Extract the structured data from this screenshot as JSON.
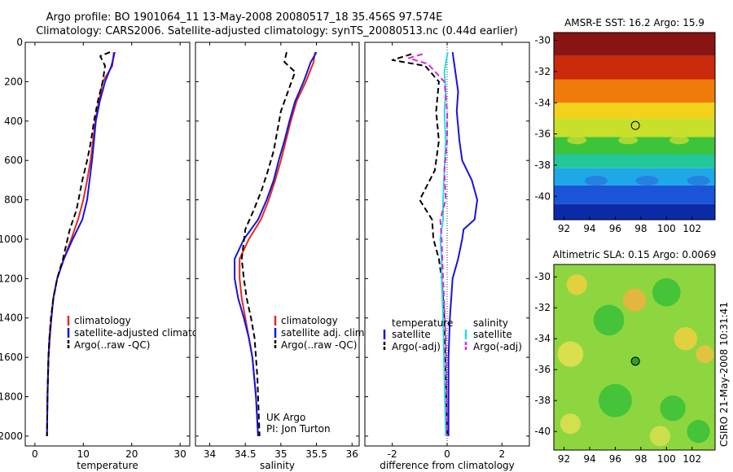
{
  "figure": {
    "title_line1": "Argo profile: BO 1901064_11 13-May-2008 20080517_18 35.456S 97.574E",
    "title_line2": "Climatology: CARS2006. Satellite-adjusted climatology: synTS_20080513.nc (0.44d earlier)",
    "side_note": "CSIRO 21-May-2008 10:31:41"
  },
  "chart_data": [
    {
      "type": "line",
      "panel": "temperature",
      "xlabel": "temperature",
      "xlim": [
        -2,
        32
      ],
      "ylim": [
        2050,
        0
      ],
      "xticks": [
        "0",
        "10",
        "20",
        "30"
      ],
      "yticks": [
        "0",
        "200",
        "400",
        "600",
        "800",
        "1000",
        "1200",
        "1400",
        "1600",
        "1800",
        "2000"
      ],
      "legend": [
        "climatology",
        "satellite-adjusted climatology",
        "Argo(..raw -QC)"
      ],
      "series": [
        {
          "name": "climatology",
          "color": "#e8281e",
          "dash": false,
          "x": [
            16.3,
            16.0,
            14.0,
            13.2,
            12.5,
            12.0,
            11.5,
            10.8,
            10.0,
            8.9,
            7.5,
            6.0,
            4.6,
            3.8,
            3.4,
            3.1,
            2.8,
            2.6,
            2.5
          ],
          "y": [
            50,
            120,
            200,
            300,
            400,
            500,
            600,
            700,
            800,
            900,
            1000,
            1100,
            1200,
            1300,
            1400,
            1500,
            1600,
            1800,
            2000
          ]
        },
        {
          "name": "satellite-adjusted climatology",
          "color": "#1414e0",
          "dash": false,
          "x": [
            16.5,
            15.8,
            14.5,
            13.4,
            12.6,
            12.2,
            11.8,
            11.3,
            10.8,
            9.8,
            7.8,
            6.0,
            4.6,
            3.8,
            3.4,
            3.0,
            2.8,
            2.6,
            2.5
          ],
          "y": [
            50,
            120,
            200,
            300,
            400,
            500,
            600,
            700,
            800,
            900,
            1000,
            1100,
            1200,
            1300,
            1400,
            1500,
            1600,
            1800,
            2000
          ]
        },
        {
          "name": "Argo(..raw -QC)",
          "color": "#000000",
          "dash": true,
          "x": [
            15.5,
            13.5,
            14.5,
            14.0,
            13.0,
            12.2,
            11.6,
            10.8,
            9.8,
            8.6,
            7.2,
            5.8,
            4.6,
            3.8,
            3.3,
            3.0,
            2.8,
            2.6,
            2.5
          ],
          "y": [
            50,
            70,
            120,
            200,
            300,
            400,
            500,
            600,
            700,
            850,
            950,
            1100,
            1200,
            1300,
            1400,
            1500,
            1600,
            1800,
            2000
          ]
        }
      ]
    },
    {
      "type": "line",
      "panel": "salinity",
      "xlabel": "salinity",
      "xlim": [
        33.8,
        36.1
      ],
      "ylim": [
        2050,
        0
      ],
      "xticks": [
        "34",
        "34.5",
        "35",
        "35.5",
        "36"
      ],
      "legend": [
        "climatology",
        "satellite adj. clim.",
        "Argo(..raw -QC)"
      ],
      "annotation_line1": "UK Argo",
      "annotation_line2": "PI: Jon Turton",
      "series": [
        {
          "name": "climatology",
          "color": "#e8281e",
          "dash": false,
          "x": [
            35.48,
            35.46,
            35.35,
            35.22,
            35.14,
            35.07,
            35.0,
            34.92,
            34.83,
            34.72,
            34.55,
            34.42,
            34.42,
            34.45,
            34.5,
            34.55,
            34.6,
            34.65,
            34.68
          ],
          "y": [
            50,
            100,
            200,
            300,
            400,
            500,
            600,
            700,
            800,
            900,
            1000,
            1100,
            1200,
            1300,
            1400,
            1500,
            1600,
            1800,
            2000
          ]
        },
        {
          "name": "satellite adj. clim.",
          "color": "#1414e0",
          "dash": false,
          "x": [
            35.5,
            35.42,
            35.32,
            35.2,
            35.12,
            35.05,
            34.97,
            34.9,
            34.8,
            34.68,
            34.48,
            34.35,
            34.35,
            34.4,
            34.48,
            34.55,
            34.6,
            34.65,
            34.68
          ],
          "y": [
            50,
            100,
            200,
            300,
            400,
            500,
            600,
            700,
            800,
            900,
            1000,
            1100,
            1200,
            1300,
            1400,
            1500,
            1600,
            1800,
            2000
          ]
        },
        {
          "name": "Argo(..raw -QC)",
          "color": "#000000",
          "dash": true,
          "x": [
            35.08,
            35.05,
            35.2,
            35.1,
            35.0,
            34.95,
            34.9,
            34.82,
            34.73,
            34.62,
            34.5,
            34.45,
            34.48,
            34.52,
            34.58,
            34.63,
            34.67,
            34.7
          ],
          "y": [
            50,
            100,
            150,
            250,
            350,
            450,
            550,
            650,
            750,
            850,
            950,
            1100,
            1200,
            1300,
            1400,
            1500,
            1700,
            2000
          ]
        }
      ]
    },
    {
      "type": "line",
      "panel": "difference",
      "xlabel": "difference from climatology",
      "xlim": [
        -3,
        3
      ],
      "ylim": [
        2050,
        0
      ],
      "xticks": [
        "-2",
        "0",
        "2"
      ],
      "legend_group1_title": "temperature",
      "legend_group2_title": "salinity",
      "legend": [
        "satellite",
        "Argo(-adj)",
        "satellite",
        "Argo(-adj)"
      ],
      "series": [
        {
          "name": "satellite",
          "color": "#1414e0",
          "dash": false,
          "x": [
            0.2,
            0.3,
            0.4,
            0.35,
            0.45,
            0.55,
            0.9,
            1.1,
            1.0,
            0.6,
            0.55,
            0.4,
            0.2,
            0.1,
            0.05,
            0.05,
            0.05
          ],
          "y": [
            50,
            150,
            250,
            350,
            500,
            600,
            700,
            800,
            900,
            950,
            1000,
            1100,
            1200,
            1400,
            1600,
            1800,
            2000
          ]
        },
        {
          "name": "Argo(-adj)",
          "color": "#000000",
          "dash": true,
          "x": [
            -1.3,
            -2.0,
            -0.8,
            -0.3,
            -0.4,
            -0.3,
            -0.45,
            -1.0,
            -0.55,
            -0.5,
            -0.3,
            -0.2,
            -0.1,
            -0.05,
            0.0
          ],
          "y": [
            60,
            90,
            120,
            200,
            350,
            500,
            650,
            800,
            900,
            1000,
            1100,
            1200,
            1400,
            1700,
            2000
          ]
        },
        {
          "name": "satellite",
          "color": "#20e0e0",
          "dash": false,
          "x": [
            0.02,
            -0.1,
            -0.05,
            -0.1,
            -0.05,
            -0.1,
            -0.15,
            -0.15,
            -0.25,
            -0.2,
            -0.2,
            -0.15,
            -0.1,
            -0.05
          ],
          "y": [
            50,
            150,
            250,
            350,
            500,
            650,
            800,
            900,
            1000,
            1100,
            1200,
            1400,
            1700,
            2000
          ]
        },
        {
          "name": "Argo(-adj)",
          "color": "#e020e0",
          "dash": true,
          "x": [
            -0.9,
            -1.4,
            -0.7,
            -0.1,
            0.0,
            0.0,
            -0.1,
            -0.05,
            -0.25,
            -0.2,
            -0.15,
            -0.05,
            0.0
          ],
          "y": [
            60,
            80,
            110,
            200,
            350,
            500,
            650,
            800,
            900,
            1000,
            1200,
            1500,
            2000
          ]
        }
      ]
    },
    {
      "type": "heatmap",
      "panel": "sst-map",
      "title": "AMSR-E SST: 16.2 Argo: 15.9",
      "xlim": [
        91.2,
        103.8
      ],
      "ylim": [
        -41.5,
        -29.5
      ],
      "xticks": [
        "92",
        "94",
        "96",
        "98",
        "100",
        "102"
      ],
      "yticks": [
        "-30",
        "-32",
        "-34",
        "-36",
        "-38",
        "-40"
      ],
      "marker": {
        "lon": 97.574,
        "lat": -35.456
      },
      "bands": [
        {
          "lat_from": -29.5,
          "lat_to": -31.0,
          "color": "#8a1414"
        },
        {
          "lat_from": -31.0,
          "lat_to": -32.5,
          "color": "#cc2a0c"
        },
        {
          "lat_from": -32.5,
          "lat_to": -34.0,
          "color": "#f07a0a"
        },
        {
          "lat_from": -34.0,
          "lat_to": -35.0,
          "color": "#f2d21a"
        },
        {
          "lat_from": -35.0,
          "lat_to": -36.2,
          "color": "#c8e02a"
        },
        {
          "lat_from": -36.2,
          "lat_to": -37.3,
          "color": "#3ec43a"
        },
        {
          "lat_from": -37.3,
          "lat_to": -38.2,
          "color": "#22c79a"
        },
        {
          "lat_from": -38.2,
          "lat_to": -39.3,
          "color": "#1ea8e8"
        },
        {
          "lat_from": -39.3,
          "lat_to": -40.5,
          "color": "#1a54d8"
        },
        {
          "lat_from": -40.5,
          "lat_to": -41.5,
          "color": "#0c2aa8"
        }
      ]
    },
    {
      "type": "heatmap",
      "panel": "sla-map",
      "title": "Altimetric SLA: 0.15 Argo: 0.0069",
      "xlim": [
        91.2,
        103.8
      ],
      "ylim": [
        -41.2,
        -29.2
      ],
      "xticks": [
        "92",
        "94",
        "96",
        "98",
        "100",
        "102"
      ],
      "yticks": [
        "-30",
        "-32",
        "-34",
        "-36",
        "-38",
        "-40"
      ],
      "marker": {
        "lon": 97.574,
        "lat": -35.456
      },
      "base_color": "#8ed640",
      "patches": [
        {
          "lon": 97.5,
          "lat": -31.5,
          "r": 0.9,
          "color": "#f2b040"
        },
        {
          "lon": 93.0,
          "lat": -30.5,
          "r": 0.8,
          "color": "#f0d040"
        },
        {
          "lon": 101.5,
          "lat": -34.0,
          "r": 0.9,
          "color": "#f0d040"
        },
        {
          "lon": 103.0,
          "lat": -35.0,
          "r": 0.7,
          "color": "#f0c040"
        },
        {
          "lon": 92.5,
          "lat": -35.0,
          "r": 1.0,
          "color": "#e8e050"
        },
        {
          "lon": 95.5,
          "lat": -32.8,
          "r": 1.2,
          "color": "#38c038"
        },
        {
          "lon": 100.0,
          "lat": -31.0,
          "r": 1.1,
          "color": "#38c038"
        },
        {
          "lon": 96.0,
          "lat": -38.0,
          "r": 1.3,
          "color": "#38c038"
        },
        {
          "lon": 100.5,
          "lat": -38.5,
          "r": 1.0,
          "color": "#38c038"
        },
        {
          "lon": 92.5,
          "lat": -39.5,
          "r": 0.8,
          "color": "#e0e050"
        },
        {
          "lon": 99.5,
          "lat": -40.3,
          "r": 0.8,
          "color": "#d8e050"
        },
        {
          "lon": 102.5,
          "lat": -40.0,
          "r": 0.9,
          "color": "#38c038"
        }
      ]
    }
  ]
}
